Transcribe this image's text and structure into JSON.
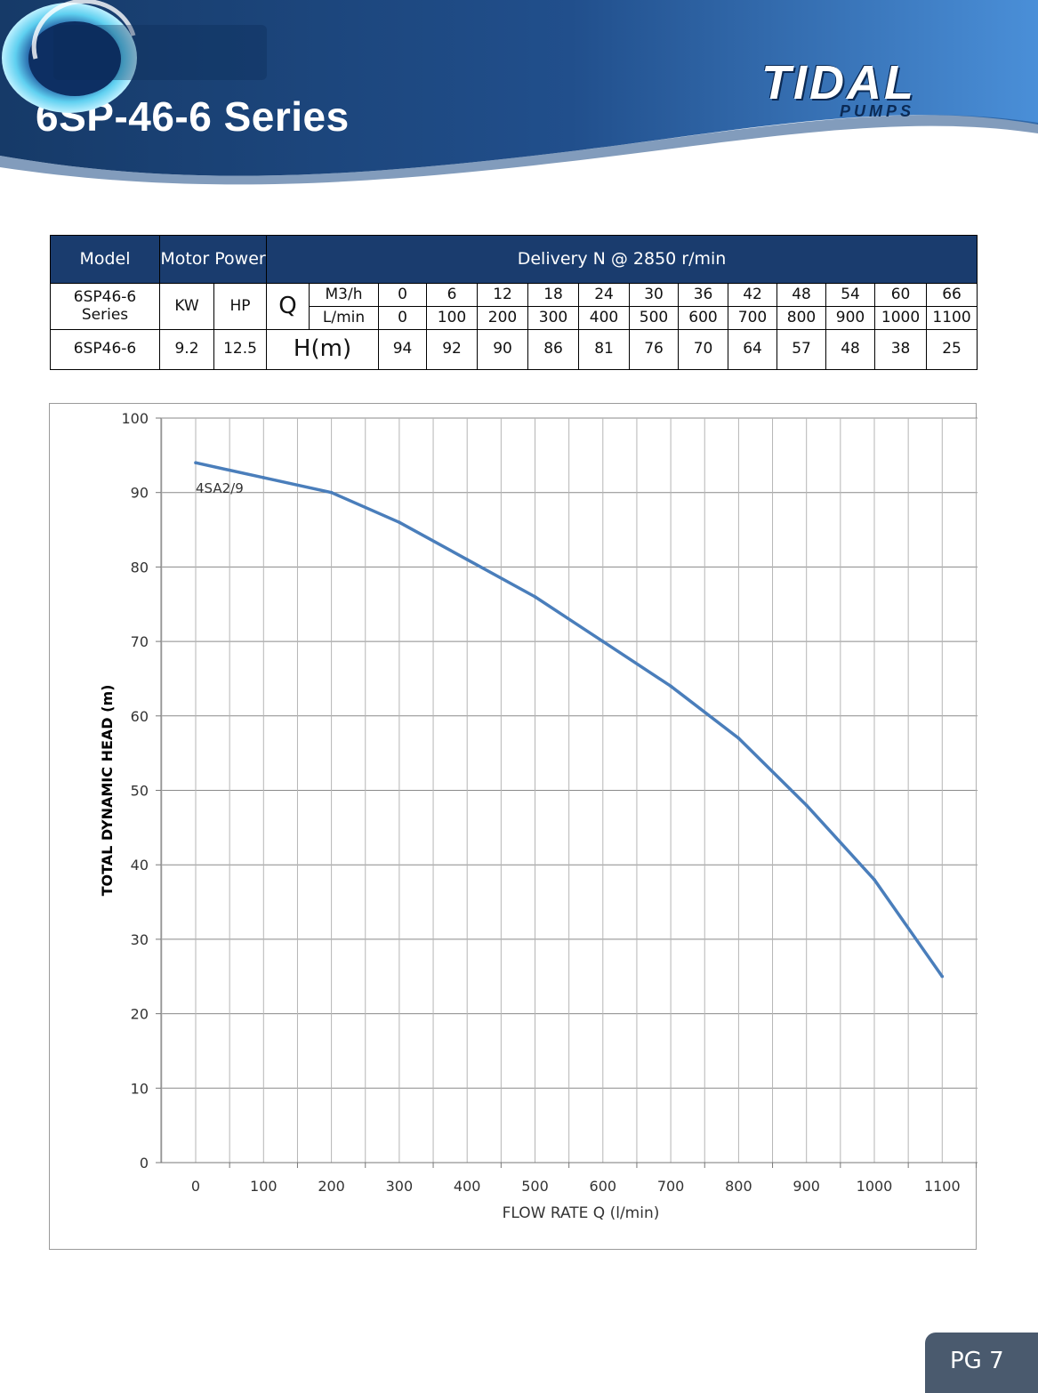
{
  "header": {
    "title": "6SP-46-6 Series",
    "brand_main": "TIDAL",
    "brand_sub": "PUMPS",
    "colors": {
      "dark_navy": "#163a68",
      "mid_blue": "#2e66a8",
      "light_blue": "#4a8fd8",
      "logo_cyan": "#5fd0f0"
    }
  },
  "table": {
    "head": {
      "model": "Model",
      "motor_power": "Motor Power",
      "delivery": "Delivery N @ 2850 r/min"
    },
    "row_series": {
      "model_line1": "6SP46-6",
      "model_line2": "Series",
      "kw": "KW",
      "hp": "HP",
      "q": "Q",
      "unit_m3h": "M3/h",
      "unit_lmin": "L/min"
    },
    "m3h": [
      "0",
      "6",
      "12",
      "18",
      "24",
      "30",
      "36",
      "42",
      "48",
      "54",
      "60",
      "66"
    ],
    "lmin": [
      "0",
      "100",
      "200",
      "300",
      "400",
      "500",
      "600",
      "700",
      "800",
      "900",
      "1000",
      "1100"
    ],
    "row_model": {
      "model": "6SP46-6",
      "kw": "9.2",
      "hp": "12.5",
      "h_label": "H(m)"
    },
    "head_m": [
      "94",
      "92",
      "90",
      "86",
      "81",
      "76",
      "70",
      "64",
      "57",
      "48",
      "38",
      "25"
    ]
  },
  "chart_data": {
    "type": "line",
    "x": [
      0,
      100,
      200,
      300,
      400,
      500,
      600,
      700,
      800,
      900,
      1000,
      1100
    ],
    "series": [
      {
        "name": "4SA2/9",
        "values": [
          94,
          92,
          90,
          86,
          81,
          76,
          70,
          64,
          57,
          48,
          38,
          25
        ],
        "color": "#4a7ebb"
      }
    ],
    "xlabel": "FLOW RATE Q (l/min)",
    "ylabel": "TOTAL DYNAMIC HEAD (m)",
    "xticks": [
      "0",
      "100",
      "200",
      "300",
      "400",
      "500",
      "600",
      "700",
      "800",
      "900",
      "1000",
      "1100"
    ],
    "yticks": [
      "0",
      "10",
      "20",
      "30",
      "40",
      "50",
      "60",
      "70",
      "80",
      "90",
      "100"
    ],
    "ylim": [
      0,
      100
    ],
    "grid": true,
    "legend": "inline label near first point"
  },
  "footer": {
    "page": "PG 7"
  }
}
